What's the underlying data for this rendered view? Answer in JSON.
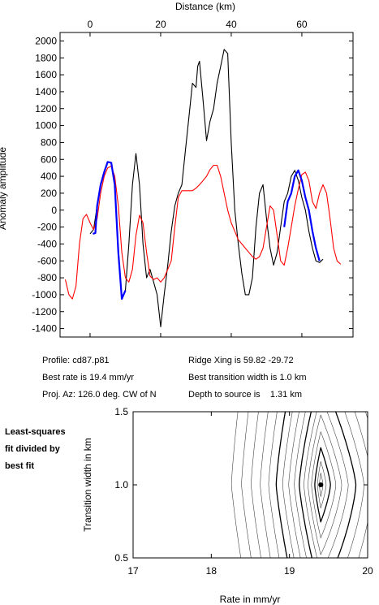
{
  "chart_data": [
    {
      "type": "line",
      "top_axis_label": "Distance (km)",
      "ylabel": "Anomaly amplitude",
      "xticks": [
        0,
        20,
        40,
        60
      ],
      "yticks": [
        -1400,
        -1200,
        -1000,
        -800,
        -600,
        -400,
        -200,
        0,
        200,
        400,
        600,
        800,
        1000,
        1200,
        1400,
        1600,
        1800,
        2000
      ],
      "xlim": [
        -8.5,
        74.5
      ],
      "ylim": [
        -1500,
        2100
      ],
      "colors": {
        "observed": "#000000",
        "model": "#ff0000",
        "fit_windows": "#0000ff"
      },
      "series": [
        {
          "key": "observed",
          "color": "#000000",
          "x": [
            0,
            1,
            2,
            3,
            4,
            5,
            6,
            7,
            8,
            9,
            10,
            11,
            12,
            13,
            14,
            15,
            16,
            17,
            18,
            19,
            20,
            21,
            22,
            23,
            24,
            25,
            26,
            27,
            28,
            29,
            30,
            30.5,
            31,
            32,
            33,
            34,
            35,
            36,
            37,
            38,
            39,
            40,
            41,
            42,
            43,
            44,
            45,
            46,
            47,
            48,
            49,
            50,
            51,
            52,
            53,
            54,
            55,
            56,
            57,
            58,
            59,
            60,
            61,
            62,
            63,
            64,
            65,
            66
          ],
          "y": [
            -280,
            -230,
            50,
            300,
            450,
            570,
            560,
            300,
            -500,
            -1050,
            -950,
            -400,
            300,
            670,
            300,
            -400,
            -800,
            -700,
            -850,
            -1000,
            -1380,
            -1000,
            -650,
            -250,
            50,
            200,
            300,
            700,
            1100,
            1500,
            1450,
            1700,
            1760,
            1300,
            820,
            1050,
            1200,
            1500,
            1700,
            1900,
            1850,
            800,
            0,
            -400,
            -750,
            -1000,
            -1000,
            -800,
            -200,
            200,
            300,
            -100,
            -450,
            -650,
            -500,
            -200,
            100,
            200,
            400,
            470,
            350,
            150,
            0,
            -250,
            -450,
            -600,
            -620,
            -580
          ]
        },
        {
          "key": "model",
          "color": "#ff0000",
          "x": [
            -7,
            -6,
            -5,
            -4,
            -3,
            -2,
            -1,
            0,
            1,
            2,
            3,
            4,
            5,
            6,
            7,
            8,
            9,
            10,
            11,
            12,
            13,
            14,
            15,
            16,
            17,
            18,
            19,
            20,
            21,
            22,
            23,
            24,
            25,
            26,
            27,
            28,
            29,
            30,
            31,
            32,
            33,
            34,
            35,
            36,
            37,
            38,
            39,
            40,
            41,
            42,
            43,
            44,
            45,
            46,
            47,
            48,
            49,
            50,
            51,
            52,
            53,
            54,
            55,
            56,
            57,
            58,
            59,
            60,
            61,
            62,
            63,
            64,
            65,
            66,
            67,
            68,
            69,
            70,
            71
          ],
          "y": [
            -820,
            -1000,
            -1050,
            -900,
            -400,
            -100,
            -50,
            -150,
            -230,
            -100,
            200,
            400,
            500,
            520,
            400,
            50,
            -500,
            -800,
            -850,
            -700,
            -300,
            -60,
            -150,
            -500,
            -780,
            -820,
            -800,
            -850,
            -800,
            -700,
            -600,
            -200,
            150,
            230,
            230,
            230,
            230,
            260,
            300,
            350,
            400,
            480,
            530,
            530,
            400,
            200,
            0,
            -150,
            -250,
            -350,
            -400,
            -450,
            -500,
            -550,
            -580,
            -550,
            -450,
            -200,
            50,
            0,
            -300,
            -600,
            -650,
            -450,
            -200,
            50,
            250,
            420,
            450,
            350,
            100,
            20,
            200,
            300,
            200,
            -100,
            -450,
            -600,
            -640
          ]
        },
        {
          "key": "fit_window_1",
          "color": "#0000ff",
          "x": [
            0.8,
            1.5,
            2,
            3,
            4,
            5,
            6,
            7,
            8,
            9,
            10
          ],
          "y": [
            -280,
            -270,
            50,
            300,
            450,
            570,
            560,
            300,
            -500,
            -1050,
            -950
          ]
        },
        {
          "key": "fit_window_2",
          "color": "#0000ff",
          "x": [
            55,
            56,
            57,
            58,
            59,
            60,
            61,
            62,
            63,
            64,
            65
          ],
          "y": [
            -200,
            100,
            200,
            400,
            470,
            350,
            150,
            0,
            -250,
            -450,
            -600
          ]
        }
      ]
    },
    {
      "type": "contour",
      "xlabel": "Rate in mm/yr",
      "ylabel": "Transition width in km",
      "xticks": [
        17,
        18,
        19,
        20
      ],
      "yticks": [
        0.5,
        1.0,
        1.5
      ],
      "xlim": [
        17,
        20
      ],
      "ylim": [
        0.5,
        1.5
      ],
      "best_fit": {
        "rate": 19.4,
        "width": 1.0
      },
      "contour_levels": [
        0.05,
        0.12,
        0.22,
        0.35,
        0.5,
        0.68,
        0.9,
        1.15,
        1.45,
        1.8,
        2.2,
        2.7,
        3.3,
        4.0,
        4.8,
        5.7
      ],
      "bold_levels": [
        0.22,
        0.9,
        2.2
      ]
    }
  ],
  "info": {
    "profile": "Profile: cd87.p81",
    "ridge": "Ridge Xing is 59.82 -29.72",
    "rate": "Best rate is 19.4 mm/yr",
    "transition": "Best transition width is 1.0 km",
    "proj": "Proj. Az: 126.0 deg. CW of N",
    "depth": "Depth to source is    1.31 km"
  },
  "side_label": [
    "Least-squares",
    "fit divided by",
    "best fit"
  ]
}
